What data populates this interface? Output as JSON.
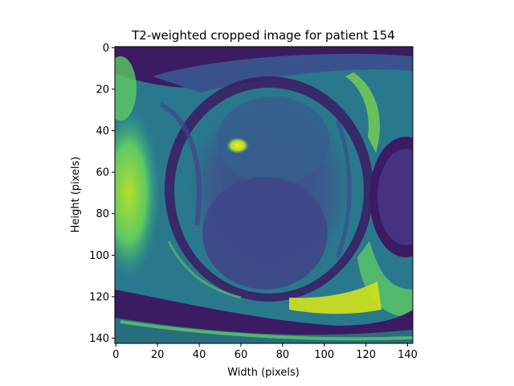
{
  "title": "T2-weighted cropped image for patient 154",
  "image": {
    "description": "T2-weighted MRI crop rendered with the viridis colormap",
    "colormap": "viridis",
    "colors": {
      "low": "#3b1b62",
      "mid_low": "#3a5b8c",
      "mid": "#21918c",
      "high": "#5ec962",
      "max": "#fde725"
    }
  },
  "chart_data": {
    "type": "heatmap",
    "title": "T2-weighted cropped image for patient 154",
    "xlabel": "Width (pixels)",
    "ylabel": "Height (pixels)",
    "xlim": [
      0,
      143
    ],
    "ylim": [
      143,
      0
    ],
    "x_ticks": [
      0,
      20,
      40,
      60,
      80,
      100,
      120,
      140
    ],
    "y_ticks": [
      0,
      20,
      40,
      60,
      80,
      100,
      120,
      140
    ],
    "grid": false,
    "legend": "none"
  }
}
